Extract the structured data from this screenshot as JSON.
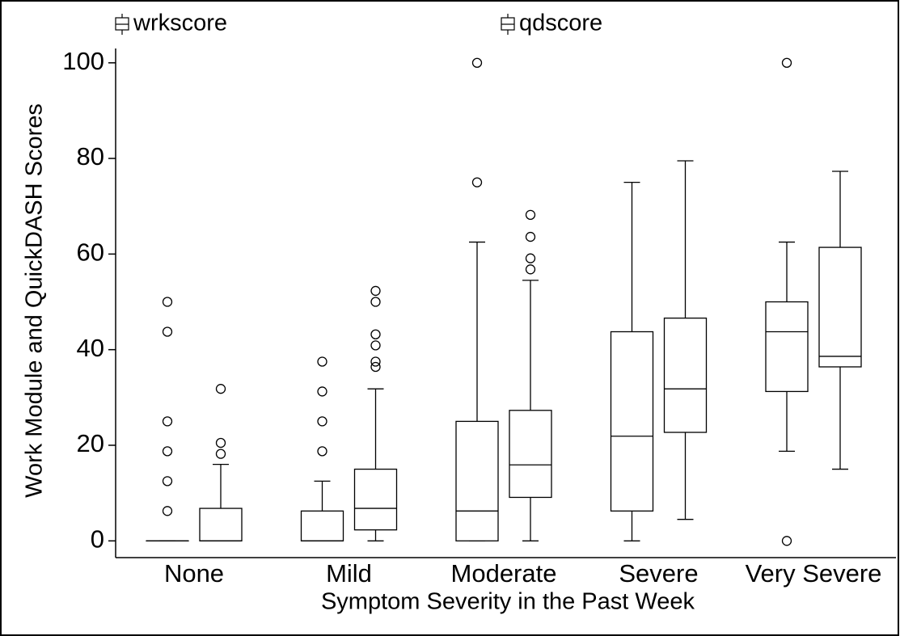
{
  "chart_data": {
    "type": "box",
    "x_label": "Symptom Severity in the Past Week",
    "y_label": "Work Module and QuickDASH Scores",
    "categories": [
      "None",
      "Mild",
      "Moderate",
      "Severe",
      "Very Severe"
    ],
    "ylim": [
      -3.5,
      103
    ],
    "yticks": [
      0,
      20,
      40,
      60,
      80,
      100
    ],
    "series": [
      {
        "name": "wrkscore",
        "color": "#000000",
        "boxes": [
          {
            "min": 0,
            "q1": 0,
            "median": 0,
            "q3": 0,
            "max": 0,
            "outliers": [
              6.25,
              12.5,
              18.75,
              25,
              43.75,
              50
            ]
          },
          {
            "min": 0,
            "q1": 0,
            "median": 0,
            "q3": 6.25,
            "max": 12.5,
            "outliers": [
              18.75,
              25,
              31.25,
              37.5
            ]
          },
          {
            "min": 0,
            "q1": 0,
            "median": 6.25,
            "q3": 25,
            "max": 62.5,
            "outliers": [
              75,
              100
            ]
          },
          {
            "min": 0,
            "q1": 6.25,
            "median": 21.9,
            "q3": 43.75,
            "max": 75,
            "outliers": []
          },
          {
            "min": 18.75,
            "q1": 31.25,
            "median": 43.75,
            "q3": 50,
            "max": 62.5,
            "outliers": [
              0,
              100
            ]
          }
        ]
      },
      {
        "name": "qdscore",
        "color": "#000000",
        "boxes": [
          {
            "min": 0,
            "q1": 0,
            "median": 0,
            "q3": 6.8,
            "max": 16,
            "outliers": [
              18.2,
              20.5,
              31.8
            ]
          },
          {
            "min": 0,
            "q1": 2.3,
            "median": 6.8,
            "q3": 15,
            "max": 31.8,
            "outliers": [
              36.4,
              37.5,
              40.9,
              43.2,
              50,
              52.3
            ]
          },
          {
            "min": 0,
            "q1": 9.1,
            "median": 15.9,
            "q3": 27.3,
            "max": 54.5,
            "outliers": [
              56.8,
              59.1,
              63.6,
              68.2
            ]
          },
          {
            "min": 4.5,
            "q1": 22.7,
            "median": 31.8,
            "q3": 46.6,
            "max": 79.5,
            "outliers": []
          },
          {
            "min": 15,
            "q1": 36.4,
            "median": 38.6,
            "q3": 61.4,
            "max": 77.3,
            "outliers": []
          }
        ]
      }
    ]
  }
}
